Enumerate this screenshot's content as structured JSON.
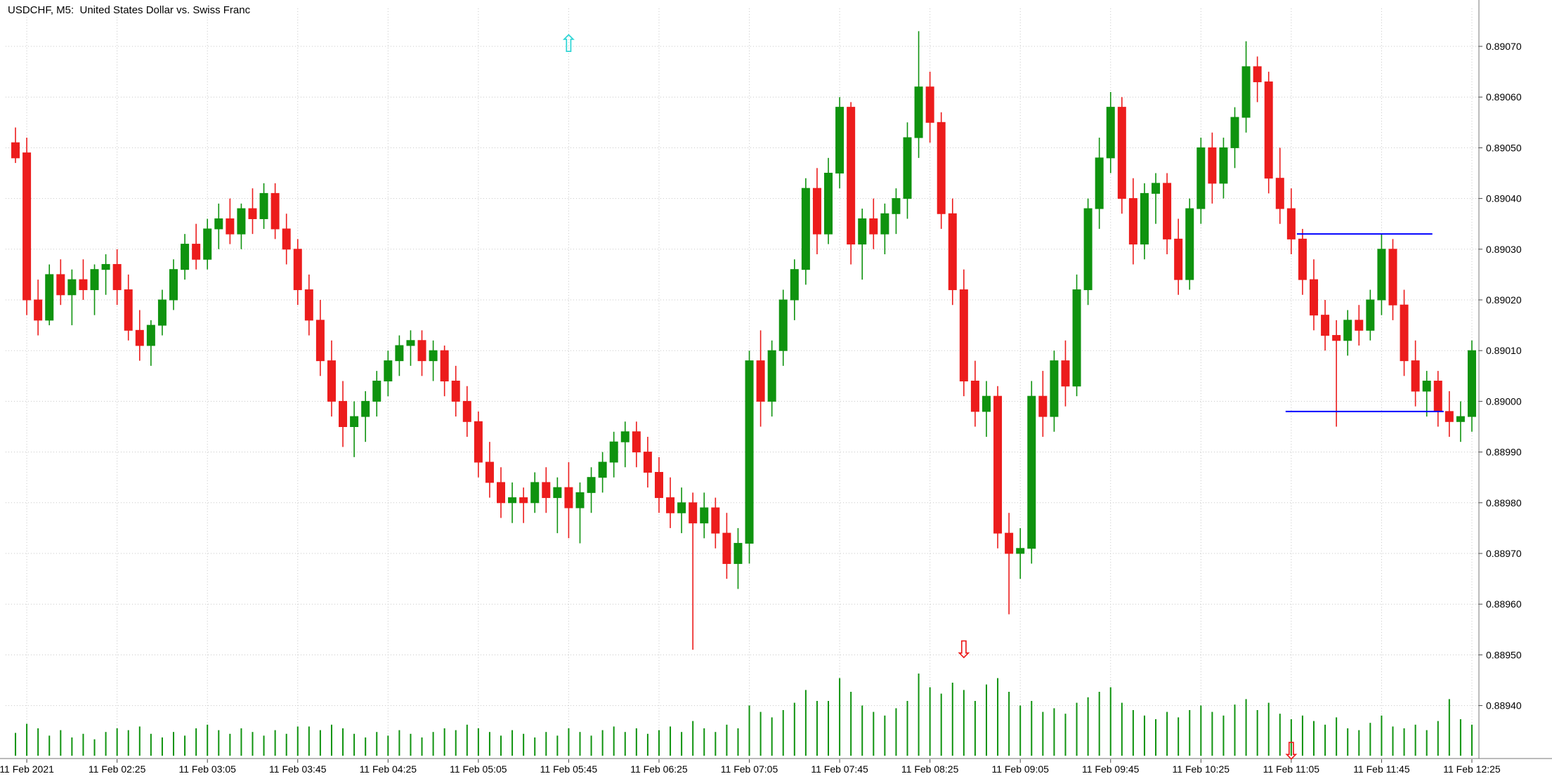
{
  "header": {
    "title": "USDCHF, M5:  United States Dollar vs. Swiss Franc"
  },
  "chart_data": {
    "type": "candlestick",
    "symbol": "USDCHF",
    "timeframe": "M5",
    "description": "United States Dollar vs. Swiss Franc",
    "price_axis": {
      "ticks": [
        "0.89070",
        "0.89060",
        "0.89050",
        "0.89040",
        "0.89030",
        "0.89020",
        "0.89010",
        "0.89000",
        "0.88990",
        "0.88980",
        "0.88970",
        "0.88960",
        "0.88950",
        "0.88940"
      ]
    },
    "time_axis": {
      "labels": [
        "11 Feb 2021",
        "11 Feb 02:25",
        "11 Feb 03:05",
        "11 Feb 03:45",
        "11 Feb 04:25",
        "11 Feb 05:05",
        "11 Feb 05:45",
        "11 Feb 06:25",
        "11 Feb 07:05",
        "11 Feb 07:45",
        "11 Feb 08:25",
        "11 Feb 09:05",
        "11 Feb 09:45",
        "11 Feb 10:25",
        "11 Feb 11:05",
        "11 Feb 11:45",
        "11 Feb 12:25"
      ],
      "label_candle_indices": [
        1,
        9,
        17,
        25,
        33,
        41,
        49,
        57,
        65,
        73,
        81,
        89,
        97,
        105,
        113,
        121,
        129
      ]
    },
    "candles": [
      [
        0.89051,
        0.89054,
        0.89047,
        0.89048
      ],
      [
        0.89049,
        0.89052,
        0.89017,
        0.8902
      ],
      [
        0.8902,
        0.89024,
        0.89013,
        0.89016
      ],
      [
        0.89016,
        0.89027,
        0.89015,
        0.89025
      ],
      [
        0.89025,
        0.89028,
        0.89019,
        0.89021
      ],
      [
        0.89021,
        0.89026,
        0.89015,
        0.89024
      ],
      [
        0.89024,
        0.89028,
        0.8902,
        0.89022
      ],
      [
        0.89022,
        0.89027,
        0.89017,
        0.89026
      ],
      [
        0.89026,
        0.89029,
        0.89021,
        0.89027
      ],
      [
        0.89027,
        0.8903,
        0.89019,
        0.89022
      ],
      [
        0.89022,
        0.89025,
        0.89012,
        0.89014
      ],
      [
        0.89014,
        0.89018,
        0.89008,
        0.89011
      ],
      [
        0.89011,
        0.89016,
        0.89007,
        0.89015
      ],
      [
        0.89015,
        0.89022,
        0.89013,
        0.8902
      ],
      [
        0.8902,
        0.89028,
        0.89018,
        0.89026
      ],
      [
        0.89026,
        0.89033,
        0.89024,
        0.89031
      ],
      [
        0.89031,
        0.89035,
        0.89026,
        0.89028
      ],
      [
        0.89028,
        0.89036,
        0.89026,
        0.89034
      ],
      [
        0.89034,
        0.89039,
        0.8903,
        0.89036
      ],
      [
        0.89036,
        0.8904,
        0.89031,
        0.89033
      ],
      [
        0.89033,
        0.89039,
        0.8903,
        0.89038
      ],
      [
        0.89038,
        0.89042,
        0.89033,
        0.89036
      ],
      [
        0.89036,
        0.89043,
        0.89034,
        0.89041
      ],
      [
        0.89041,
        0.89043,
        0.89032,
        0.89034
      ],
      [
        0.89034,
        0.89037,
        0.89027,
        0.8903
      ],
      [
        0.8903,
        0.89032,
        0.89019,
        0.89022
      ],
      [
        0.89022,
        0.89025,
        0.89013,
        0.89016
      ],
      [
        0.89016,
        0.8902,
        0.89005,
        0.89008
      ],
      [
        0.89008,
        0.89012,
        0.88997,
        0.89
      ],
      [
        0.89,
        0.89004,
        0.88991,
        0.88995
      ],
      [
        0.88995,
        0.89,
        0.88989,
        0.88997
      ],
      [
        0.88997,
        0.89002,
        0.88992,
        0.89
      ],
      [
        0.89,
        0.89006,
        0.88997,
        0.89004
      ],
      [
        0.89004,
        0.8901,
        0.89001,
        0.89008
      ],
      [
        0.89008,
        0.89013,
        0.89005,
        0.89011
      ],
      [
        0.89011,
        0.89014,
        0.89007,
        0.89012
      ],
      [
        0.89012,
        0.89014,
        0.89005,
        0.89008
      ],
      [
        0.89008,
        0.89012,
        0.89004,
        0.8901
      ],
      [
        0.8901,
        0.89011,
        0.89001,
        0.89004
      ],
      [
        0.89004,
        0.89007,
        0.88997,
        0.89
      ],
      [
        0.89,
        0.89003,
        0.88993,
        0.88996
      ],
      [
        0.88996,
        0.88998,
        0.88985,
        0.88988
      ],
      [
        0.88988,
        0.88992,
        0.88981,
        0.88984
      ],
      [
        0.88984,
        0.88987,
        0.88977,
        0.8898
      ],
      [
        0.8898,
        0.88984,
        0.88976,
        0.88981
      ],
      [
        0.88981,
        0.88983,
        0.88976,
        0.8898
      ],
      [
        0.8898,
        0.88986,
        0.88978,
        0.88984
      ],
      [
        0.88984,
        0.88987,
        0.88978,
        0.88981
      ],
      [
        0.88981,
        0.88985,
        0.88974,
        0.88983
      ],
      [
        0.88983,
        0.88988,
        0.88973,
        0.88979
      ],
      [
        0.88979,
        0.88984,
        0.88972,
        0.88982
      ],
      [
        0.88982,
        0.88987,
        0.88978,
        0.88985
      ],
      [
        0.88985,
        0.8899,
        0.88982,
        0.88988
      ],
      [
        0.88988,
        0.88994,
        0.88985,
        0.88992
      ],
      [
        0.88992,
        0.88996,
        0.88987,
        0.88994
      ],
      [
        0.88994,
        0.88996,
        0.88987,
        0.8899
      ],
      [
        0.8899,
        0.88993,
        0.88983,
        0.88986
      ],
      [
        0.88986,
        0.88989,
        0.88978,
        0.88981
      ],
      [
        0.88981,
        0.88985,
        0.88975,
        0.88978
      ],
      [
        0.88978,
        0.88983,
        0.88974,
        0.8898
      ],
      [
        0.8898,
        0.88982,
        0.88951,
        0.88976
      ],
      [
        0.88976,
        0.88982,
        0.88973,
        0.88979
      ],
      [
        0.88979,
        0.88981,
        0.88971,
        0.88974
      ],
      [
        0.88974,
        0.88978,
        0.88965,
        0.88968
      ],
      [
        0.88968,
        0.88975,
        0.88963,
        0.88972
      ],
      [
        0.88972,
        0.8901,
        0.88968,
        0.89008
      ],
      [
        0.89008,
        0.89014,
        0.88995,
        0.89
      ],
      [
        0.89,
        0.89012,
        0.88997,
        0.8901
      ],
      [
        0.8901,
        0.89022,
        0.89007,
        0.8902
      ],
      [
        0.8902,
        0.89028,
        0.89016,
        0.89026
      ],
      [
        0.89026,
        0.89044,
        0.89023,
        0.89042
      ],
      [
        0.89042,
        0.89046,
        0.89029,
        0.89033
      ],
      [
        0.89033,
        0.89048,
        0.89031,
        0.89045
      ],
      [
        0.89045,
        0.8906,
        0.89042,
        0.89058
      ],
      [
        0.89058,
        0.89059,
        0.89027,
        0.89031
      ],
      [
        0.89031,
        0.89038,
        0.89024,
        0.89036
      ],
      [
        0.89036,
        0.8904,
        0.8903,
        0.89033
      ],
      [
        0.89033,
        0.89039,
        0.89029,
        0.89037
      ],
      [
        0.89037,
        0.89042,
        0.89033,
        0.8904
      ],
      [
        0.8904,
        0.89055,
        0.89036,
        0.89052
      ],
      [
        0.89052,
        0.89073,
        0.89048,
        0.89062
      ],
      [
        0.89062,
        0.89065,
        0.89051,
        0.89055
      ],
      [
        0.89055,
        0.89057,
        0.89034,
        0.89037
      ],
      [
        0.89037,
        0.8904,
        0.89019,
        0.89022
      ],
      [
        0.89022,
        0.89026,
        0.89001,
        0.89004
      ],
      [
        0.89004,
        0.89008,
        0.88995,
        0.88998
      ],
      [
        0.88998,
        0.89004,
        0.88993,
        0.89001
      ],
      [
        0.89001,
        0.89003,
        0.88971,
        0.88974
      ],
      [
        0.88974,
        0.88978,
        0.88958,
        0.8897
      ],
      [
        0.8897,
        0.88975,
        0.88965,
        0.88971
      ],
      [
        0.88971,
        0.89004,
        0.88968,
        0.89001
      ],
      [
        0.89001,
        0.89006,
        0.88993,
        0.88997
      ],
      [
        0.88997,
        0.8901,
        0.88994,
        0.89008
      ],
      [
        0.89008,
        0.89012,
        0.88999,
        0.89003
      ],
      [
        0.89003,
        0.89025,
        0.89001,
        0.89022
      ],
      [
        0.89022,
        0.8904,
        0.89019,
        0.89038
      ],
      [
        0.89038,
        0.89052,
        0.89034,
        0.89048
      ],
      [
        0.89048,
        0.89061,
        0.89045,
        0.89058
      ],
      [
        0.89058,
        0.8906,
        0.89037,
        0.8904
      ],
      [
        0.8904,
        0.89044,
        0.89027,
        0.89031
      ],
      [
        0.89031,
        0.89043,
        0.89028,
        0.89041
      ],
      [
        0.89041,
        0.89045,
        0.89035,
        0.89043
      ],
      [
        0.89043,
        0.89045,
        0.89029,
        0.89032
      ],
      [
        0.89032,
        0.89036,
        0.89021,
        0.89024
      ],
      [
        0.89024,
        0.8904,
        0.89022,
        0.89038
      ],
      [
        0.89038,
        0.89052,
        0.89035,
        0.8905
      ],
      [
        0.8905,
        0.89053,
        0.89039,
        0.89043
      ],
      [
        0.89043,
        0.89052,
        0.8904,
        0.8905
      ],
      [
        0.8905,
        0.89058,
        0.89046,
        0.89056
      ],
      [
        0.89056,
        0.89071,
        0.89053,
        0.89066
      ],
      [
        0.89066,
        0.89068,
        0.89059,
        0.89063
      ],
      [
        0.89063,
        0.89065,
        0.89041,
        0.89044
      ],
      [
        0.89044,
        0.8905,
        0.89035,
        0.89038
      ],
      [
        0.89038,
        0.89042,
        0.89029,
        0.89032
      ],
      [
        0.89032,
        0.89034,
        0.89021,
        0.89024
      ],
      [
        0.89024,
        0.89028,
        0.89014,
        0.89017
      ],
      [
        0.89017,
        0.8902,
        0.8901,
        0.89013
      ],
      [
        0.89013,
        0.89016,
        0.88995,
        0.89012
      ],
      [
        0.89012,
        0.89018,
        0.89009,
        0.89016
      ],
      [
        0.89016,
        0.89019,
        0.89011,
        0.89014
      ],
      [
        0.89014,
        0.89022,
        0.89012,
        0.8902
      ],
      [
        0.8902,
        0.89033,
        0.89017,
        0.8903
      ],
      [
        0.8903,
        0.89032,
        0.89016,
        0.89019
      ],
      [
        0.89019,
        0.89022,
        0.89005,
        0.89008
      ],
      [
        0.89008,
        0.89012,
        0.88999,
        0.89002
      ],
      [
        0.89002,
        0.89006,
        0.88997,
        0.89004
      ],
      [
        0.89004,
        0.89006,
        0.88995,
        0.88998
      ],
      [
        0.88998,
        0.89002,
        0.88993,
        0.88996
      ],
      [
        0.88996,
        0.89,
        0.88992,
        0.88997
      ],
      [
        0.88997,
        0.89012,
        0.88994,
        0.8901
      ]
    ],
    "volumes": [
      25,
      35,
      30,
      22,
      28,
      20,
      24,
      18,
      26,
      30,
      28,
      32,
      24,
      20,
      26,
      22,
      30,
      34,
      28,
      24,
      30,
      26,
      22,
      28,
      24,
      32,
      32,
      28,
      34,
      30,
      24,
      20,
      26,
      22,
      28,
      24,
      20,
      26,
      30,
      28,
      34,
      30,
      26,
      22,
      28,
      24,
      20,
      26,
      22,
      30,
      26,
      22,
      28,
      32,
      26,
      30,
      24,
      28,
      32,
      26,
      38,
      30,
      26,
      34,
      30,
      55,
      48,
      42,
      50,
      58,
      72,
      60,
      60,
      85,
      70,
      55,
      48,
      44,
      52,
      60,
      90,
      75,
      68,
      80,
      72,
      60,
      78,
      85,
      70,
      55,
      60,
      48,
      52,
      46,
      58,
      64,
      70,
      75,
      58,
      50,
      44,
      40,
      48,
      42,
      50,
      55,
      48,
      44,
      56,
      62,
      50,
      58,
      46,
      40,
      44,
      38,
      34,
      42,
      30,
      28,
      36,
      44,
      32,
      30,
      34,
      28,
      38,
      62,
      40,
      34
    ],
    "lines": [
      {
        "price": 0.89033,
        "from": 114,
        "to": 125,
        "color": "#0000ff"
      },
      {
        "price": 0.88998,
        "from": 113,
        "to": 126,
        "color": "#0000ff"
      }
    ],
    "markers": [
      {
        "glyph": "up-arrow",
        "index": 49,
        "price": 0.890725,
        "color": "#2ad4d4"
      },
      {
        "glyph": "down-arrow",
        "index": 84,
        "price": 0.88953,
        "color": "#ec1c1c"
      },
      {
        "glyph": "down-arrow",
        "index": 113,
        "price": 0.88933,
        "color": "#ec1c1c"
      }
    ],
    "colors": {
      "up": "#0f930f",
      "down": "#ec1c1c",
      "volume": "#0f930f",
      "grid": "#c8c8c8",
      "axis_text": "#000000",
      "axis_line": "#777777",
      "background": "#ffffff"
    }
  }
}
